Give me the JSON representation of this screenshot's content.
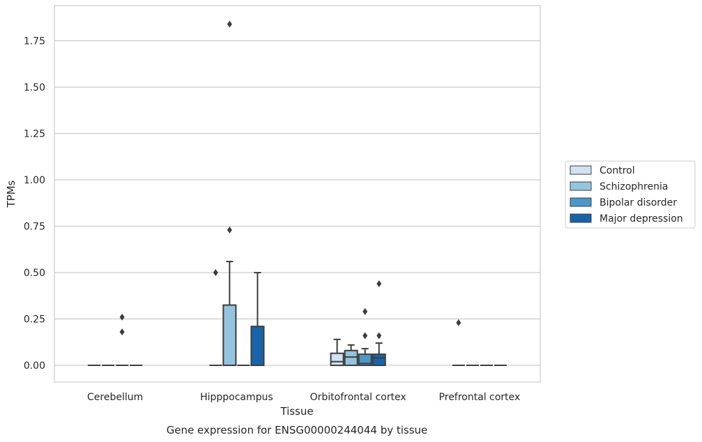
{
  "chart_data": {
    "type": "box",
    "title": "",
    "caption": "Gene expression for ENSG00000244044 by tissue",
    "xlabel": "Tissue",
    "ylabel": "TPMs",
    "ylim": [
      -0.09,
      1.94
    ],
    "yticks": [
      "0.00",
      "0.25",
      "0.50",
      "0.75",
      "1.00",
      "1.25",
      "1.50",
      "1.75"
    ],
    "grid": "horizontal",
    "legend_position": "right",
    "categories": [
      "Cerebellum",
      "Hipppocampus",
      "Orbitofrontal cortex",
      "Prefrontal cortex"
    ],
    "series": [
      {
        "name": "Control",
        "color": "#d0e1f2",
        "boxes": [
          {
            "q1": 0,
            "median": 0,
            "q3": 0,
            "whisker_low": 0,
            "whisker_high": 0,
            "outliers": []
          },
          {
            "q1": 0,
            "median": 0,
            "q3": 0,
            "whisker_low": 0,
            "whisker_high": 0,
            "outliers": [
              0.5
            ]
          },
          {
            "q1": 0,
            "median": 0.02,
            "q3": 0.065,
            "whisker_low": 0,
            "whisker_high": 0.14,
            "outliers": []
          },
          {
            "q1": 0,
            "median": 0,
            "q3": 0,
            "whisker_low": 0,
            "whisker_high": 0,
            "outliers": [
              0.23
            ]
          }
        ]
      },
      {
        "name": "Schizophrenia",
        "color": "#94c4df",
        "boxes": [
          {
            "q1": 0,
            "median": 0,
            "q3": 0,
            "whisker_low": 0,
            "whisker_high": 0,
            "outliers": []
          },
          {
            "q1": 0,
            "median": 0,
            "q3": 0.325,
            "whisker_low": 0,
            "whisker_high": 0.56,
            "outliers": [
              0.73,
              1.84
            ]
          },
          {
            "q1": 0,
            "median": 0.045,
            "q3": 0.08,
            "whisker_low": 0,
            "whisker_high": 0.11,
            "outliers": []
          },
          {
            "q1": 0,
            "median": 0,
            "q3": 0,
            "whisker_low": 0,
            "whisker_high": 0,
            "outliers": []
          }
        ]
      },
      {
        "name": "Bipolar disorder",
        "color": "#4a98c9",
        "boxes": [
          {
            "q1": 0,
            "median": 0,
            "q3": 0,
            "whisker_low": 0,
            "whisker_high": 0,
            "outliers": [
              0.18,
              0.26
            ]
          },
          {
            "q1": 0,
            "median": 0,
            "q3": 0,
            "whisker_low": 0,
            "whisker_high": 0,
            "outliers": []
          },
          {
            "q1": 0,
            "median": 0.01,
            "q3": 0.06,
            "whisker_low": 0,
            "whisker_high": 0.09,
            "outliers": [
              0.16,
              0.29
            ]
          },
          {
            "q1": 0,
            "median": 0,
            "q3": 0,
            "whisker_low": 0,
            "whisker_high": 0,
            "outliers": []
          }
        ]
      },
      {
        "name": "Major depression",
        "color": "#1764ab",
        "boxes": [
          {
            "q1": 0,
            "median": 0,
            "q3": 0,
            "whisker_low": 0,
            "whisker_high": 0,
            "outliers": []
          },
          {
            "q1": 0,
            "median": 0,
            "q3": 0.21,
            "whisker_low": 0,
            "whisker_high": 0.5,
            "outliers": []
          },
          {
            "q1": 0,
            "median": 0.04,
            "q3": 0.06,
            "whisker_low": 0,
            "whisker_high": 0.12,
            "outliers": [
              0.16,
              0.44
            ]
          },
          {
            "q1": 0,
            "median": 0,
            "q3": 0,
            "whisker_low": 0,
            "whisker_high": 0,
            "outliers": []
          }
        ]
      }
    ]
  }
}
